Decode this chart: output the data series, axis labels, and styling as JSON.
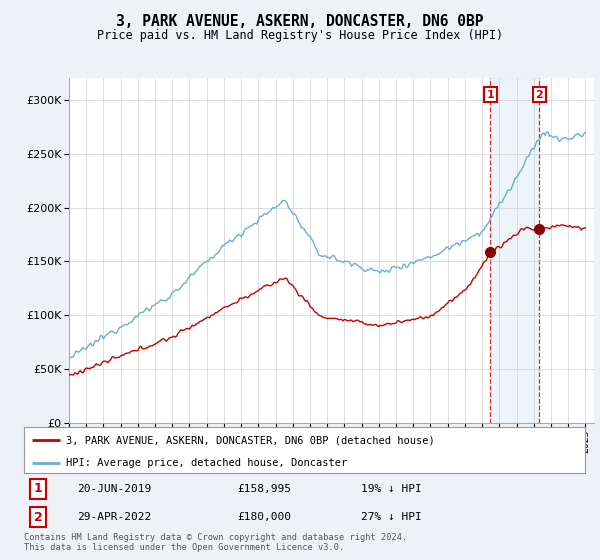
{
  "title": "3, PARK AVENUE, ASKERN, DONCASTER, DN6 0BP",
  "subtitle": "Price paid vs. HM Land Registry's House Price Index (HPI)",
  "legend_line1": "3, PARK AVENUE, ASKERN, DONCASTER, DN6 0BP (detached house)",
  "legend_line2": "HPI: Average price, detached house, Doncaster",
  "sale1_date": "20-JUN-2019",
  "sale1_price": 158995,
  "sale1_label": "19% ↓ HPI",
  "sale1_year": 2019.47,
  "sale2_date": "29-APR-2022",
  "sale2_price": 180000,
  "sale2_label": "27% ↓ HPI",
  "sale2_year": 2022.33,
  "footnote1": "Contains HM Land Registry data © Crown copyright and database right 2024.",
  "footnote2": "This data is licensed under the Open Government Licence v3.0.",
  "hpi_color": "#6baed6",
  "price_color": "#cc0000",
  "background_color": "#eef2f7",
  "plot_bg_color": "#ffffff",
  "ylim_max": 320000,
  "xlim_start": 1995.0,
  "xlim_end": 2025.5
}
